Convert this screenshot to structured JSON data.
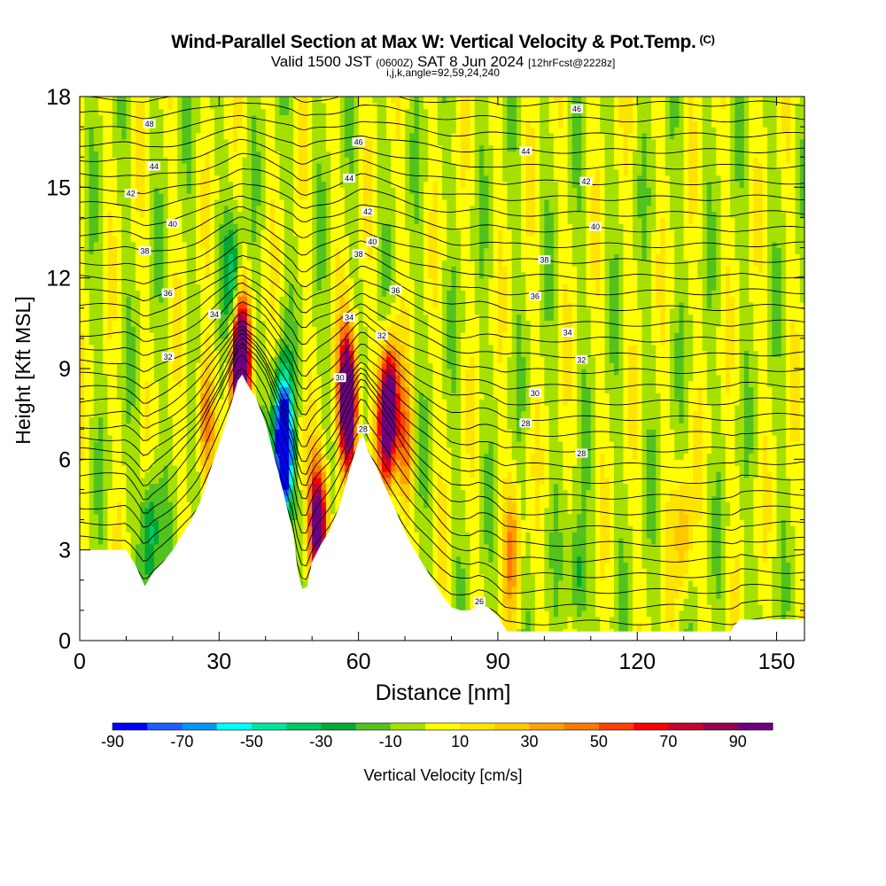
{
  "header": {
    "title": "Wind-Parallel Section at Max W: Vertical Velocity & Pot.Temp.",
    "copyright_mark": "(C)",
    "valid_prefix": "Valid 1500 JST",
    "valid_utc": "(0600Z)",
    "valid_date": "SAT 8 Jun 2024",
    "forecast_tag": "[12hrFcst@2228z]",
    "indices": "i,j,k,angle=92,59,24,240"
  },
  "chart_data": {
    "type": "heatmap",
    "title": "Wind-Parallel Section at Max W: Vertical Velocity & Pot.Temp.",
    "xlabel": "Distance [nm]",
    "ylabel": "Height [Kft MSL]",
    "xlim": [
      0,
      156
    ],
    "ylim": [
      0,
      18
    ],
    "x_ticks": [
      0,
      30,
      60,
      90,
      120,
      150
    ],
    "y_ticks": [
      0,
      3,
      6,
      9,
      12,
      15,
      18
    ],
    "colorbar": {
      "label": "Vertical Velocity [cm/s]",
      "range": [
        -90,
        100
      ],
      "tick_values": [
        -90,
        -70,
        -50,
        -30,
        -10,
        10,
        30,
        50,
        70,
        90
      ],
      "colors": [
        "#0000ff",
        "#1e5cff",
        "#0096ff",
        "#00ffff",
        "#00e6a0",
        "#00c864",
        "#00aa32",
        "#52c21e",
        "#a6e000",
        "#ffff00",
        "#ffe400",
        "#ffc800",
        "#ffa000",
        "#ff7800",
        "#ff4000",
        "#ff0000",
        "#c80030",
        "#96004e",
        "#6e0080"
      ]
    },
    "contours_label": "Pot.Temp.",
    "contour_labels": [
      {
        "x": 15,
        "y": 17.1,
        "v": "48"
      },
      {
        "x": 60,
        "y": 16.5,
        "v": "46"
      },
      {
        "x": 107,
        "y": 17.6,
        "v": "46"
      },
      {
        "x": 16,
        "y": 15.7,
        "v": "44"
      },
      {
        "x": 58,
        "y": 15.3,
        "v": "44"
      },
      {
        "x": 96,
        "y": 16.2,
        "v": "44"
      },
      {
        "x": 11,
        "y": 14.8,
        "v": "42"
      },
      {
        "x": 62,
        "y": 14.2,
        "v": "42"
      },
      {
        "x": 109,
        "y": 15.2,
        "v": "42"
      },
      {
        "x": 20,
        "y": 13.8,
        "v": "40"
      },
      {
        "x": 63,
        "y": 13.2,
        "v": "40"
      },
      {
        "x": 111,
        "y": 13.7,
        "v": "40"
      },
      {
        "x": 14,
        "y": 12.9,
        "v": "38"
      },
      {
        "x": 60,
        "y": 12.8,
        "v": "38"
      },
      {
        "x": 100,
        "y": 12.6,
        "v": "38"
      },
      {
        "x": 19,
        "y": 11.5,
        "v": "36"
      },
      {
        "x": 68,
        "y": 11.6,
        "v": "36"
      },
      {
        "x": 98,
        "y": 11.4,
        "v": "36"
      },
      {
        "x": 29,
        "y": 10.8,
        "v": "34"
      },
      {
        "x": 58,
        "y": 10.7,
        "v": "34"
      },
      {
        "x": 105,
        "y": 10.2,
        "v": "34"
      },
      {
        "x": 19,
        "y": 9.4,
        "v": "32"
      },
      {
        "x": 65,
        "y": 10.1,
        "v": "32"
      },
      {
        "x": 108,
        "y": 9.3,
        "v": "32"
      },
      {
        "x": 56,
        "y": 8.7,
        "v": "30"
      },
      {
        "x": 98,
        "y": 8.2,
        "v": "30"
      },
      {
        "x": 61,
        "y": 7.0,
        "v": "28"
      },
      {
        "x": 96,
        "y": 7.2,
        "v": "28"
      },
      {
        "x": 108,
        "y": 6.2,
        "v": "28"
      },
      {
        "x": 86,
        "y": 1.3,
        "v": "26"
      }
    ],
    "terrain": [
      [
        0,
        3
      ],
      [
        2,
        3
      ],
      [
        4,
        3
      ],
      [
        6,
        3
      ],
      [
        8,
        3
      ],
      [
        10,
        3
      ],
      [
        12,
        2.5
      ],
      [
        14,
        1.8
      ],
      [
        16,
        2.3
      ],
      [
        18,
        2.6
      ],
      [
        20,
        3
      ],
      [
        22,
        3.5
      ],
      [
        24,
        4
      ],
      [
        26,
        4.6
      ],
      [
        28,
        5.6
      ],
      [
        30,
        6.5
      ],
      [
        32,
        7.5
      ],
      [
        34,
        8.6
      ],
      [
        35,
        8.8
      ],
      [
        36,
        8.5
      ],
      [
        38,
        8
      ],
      [
        40,
        7.2
      ],
      [
        42,
        6
      ],
      [
        44,
        4.8
      ],
      [
        46,
        3.5
      ],
      [
        47,
        2.2
      ],
      [
        48,
        1.7
      ],
      [
        49,
        1.8
      ],
      [
        50,
        2.6
      ],
      [
        52,
        3.2
      ],
      [
        54,
        3.7
      ],
      [
        56,
        4.5
      ],
      [
        58,
        5.6
      ],
      [
        60,
        6.6
      ],
      [
        61,
        6.8
      ],
      [
        62,
        6.3
      ],
      [
        64,
        5.7
      ],
      [
        66,
        5
      ],
      [
        68,
        4.3
      ],
      [
        70,
        3.6
      ],
      [
        72,
        3
      ],
      [
        74,
        2.5
      ],
      [
        76,
        2
      ],
      [
        78,
        1.5
      ],
      [
        80,
        1.1
      ],
      [
        82,
        1
      ],
      [
        84,
        1
      ],
      [
        86,
        1.2
      ],
      [
        88,
        1.1
      ],
      [
        90,
        0.8
      ],
      [
        92,
        0.3
      ],
      [
        94,
        0.3
      ],
      [
        100,
        0.3
      ],
      [
        110,
        0.3
      ],
      [
        120,
        0.3
      ],
      [
        130,
        0.3
      ],
      [
        140,
        0.3
      ],
      [
        142,
        0.7
      ],
      [
        150,
        0.7
      ],
      [
        156,
        0.7
      ]
    ],
    "vertical_velocity_cells": [
      {
        "x": 34,
        "y": 9.0,
        "w": 75
      },
      {
        "x": 35,
        "y": 9.3,
        "w": 90
      },
      {
        "x": 58,
        "y": 7.5,
        "w": 95
      },
      {
        "x": 57.5,
        "y": 8.5,
        "w": 75
      },
      {
        "x": 66,
        "y": 7.2,
        "w": 90
      },
      {
        "x": 67,
        "y": 8.0,
        "w": 70
      },
      {
        "x": 51,
        "y": 4.0,
        "w": 70
      },
      {
        "x": 52,
        "y": 3.5,
        "w": 60
      },
      {
        "x": 27,
        "y": 7.4,
        "w": 45
      },
      {
        "x": 70,
        "y": 6.5,
        "w": 40
      },
      {
        "x": 93,
        "y": 3.0,
        "w": 35
      },
      {
        "x": 130,
        "y": 3.5,
        "w": 30
      },
      {
        "x": 43.5,
        "y": 7.0,
        "w": -70
      },
      {
        "x": 44,
        "y": 6.0,
        "w": -85
      },
      {
        "x": 33,
        "y": 11.8,
        "w": -35
      },
      {
        "x": 15,
        "y": 3.6,
        "w": -40
      },
      {
        "x": 107,
        "y": 2.0,
        "w": -30
      }
    ]
  }
}
